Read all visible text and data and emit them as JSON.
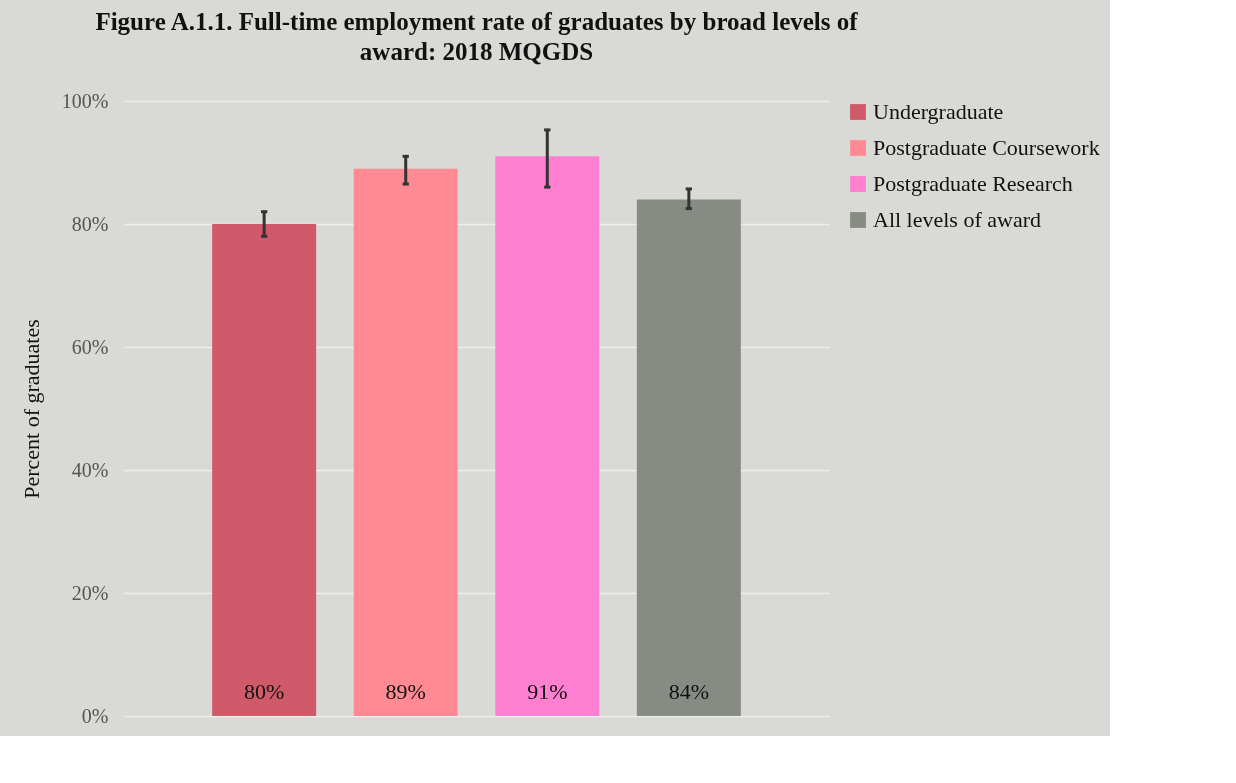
{
  "chart_data": {
    "type": "bar",
    "title": "Figure A.1.1. Full-time employment rate of graduates by broad levels of award: 2018 MQGDS",
    "ylabel": "Percent of  graduates",
    "categories": [
      null,
      null,
      null,
      null
    ],
    "series": [
      {
        "name": "Undergraduate",
        "color": "#d05a6a",
        "values": [
          80,
          null,
          null,
          null
        ],
        "errors": [
          [
            78,
            82
          ],
          null,
          null,
          null
        ],
        "value_labels": [
          "80%",
          null,
          null,
          null
        ]
      },
      {
        "name": "Postgraduate Coursework",
        "color": "#ff8a94",
        "values": [
          null,
          89,
          null,
          null
        ],
        "errors": [
          null,
          [
            86.5,
            91
          ],
          null,
          null
        ],
        "value_labels": [
          null,
          "89%",
          null,
          null
        ]
      },
      {
        "name": "Postgraduate Research",
        "color": "#ff80d0",
        "values": [
          null,
          null,
          91,
          null
        ],
        "errors": [
          null,
          null,
          [
            86,
            95.3
          ],
          null
        ],
        "value_labels": [
          null,
          null,
          "91%",
          null
        ]
      },
      {
        "name": "All levels of award",
        "color": "#868c84",
        "values": [
          null,
          null,
          null,
          84
        ],
        "errors": [
          null,
          null,
          null,
          [
            82.5,
            85.7
          ]
        ],
        "value_labels": [
          null,
          null,
          null,
          "84%"
        ]
      }
    ],
    "ylim": [
      0,
      100
    ],
    "yticks": [
      {
        "value": 0,
        "label": "0%"
      },
      {
        "value": 20,
        "label": "20%"
      },
      {
        "value": 40,
        "label": "40%"
      },
      {
        "value": 60,
        "label": "60%"
      },
      {
        "value": 80,
        "label": "80%"
      },
      {
        "value": 100,
        "label": "100%"
      }
    ],
    "grid": "y",
    "legend": "right",
    "tick_labels": "y"
  }
}
